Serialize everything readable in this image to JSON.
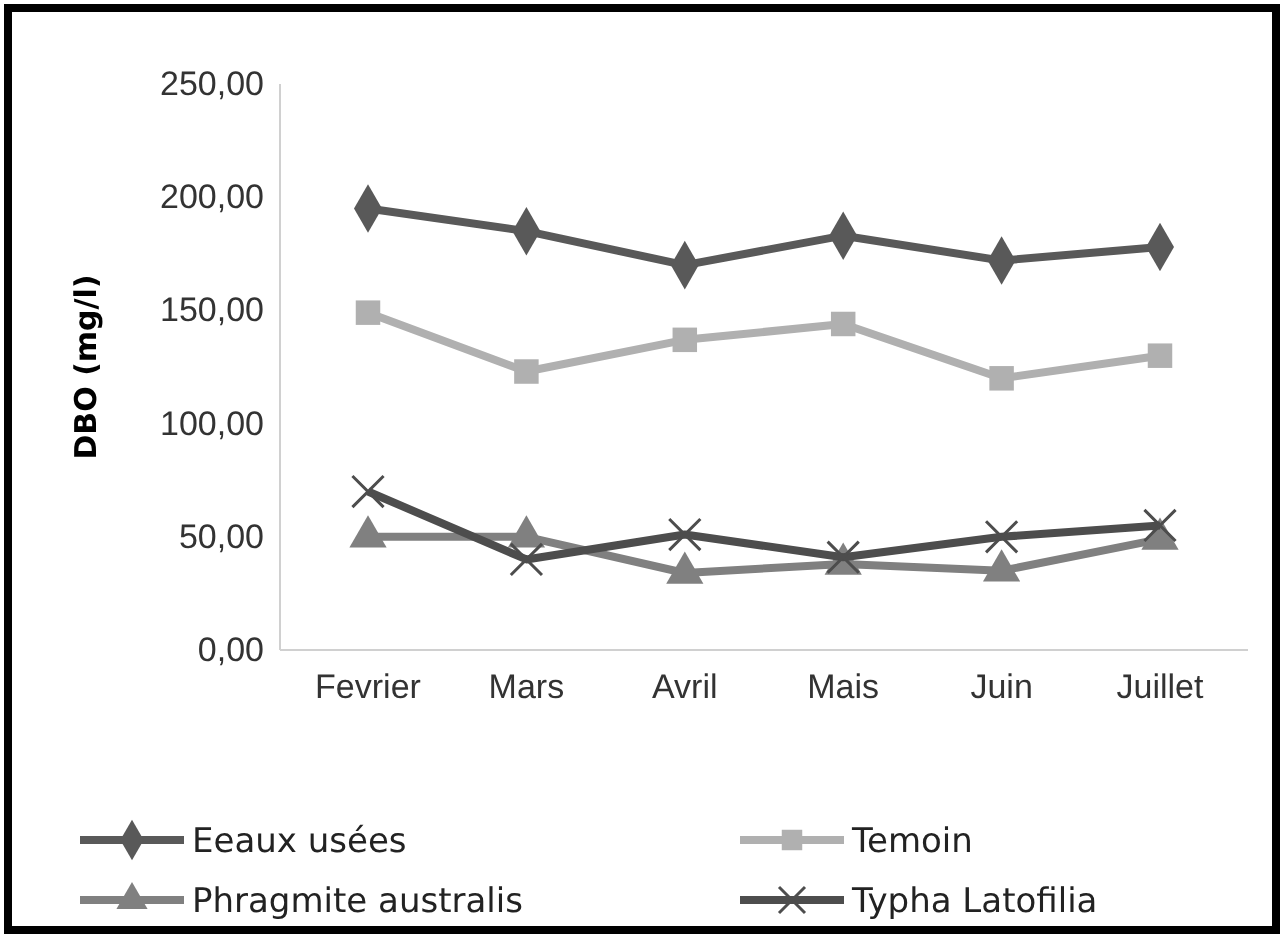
{
  "chart_data": {
    "type": "line",
    "ylabel": "DBO (mg/l)",
    "categories": [
      "Fevrier",
      "Mars",
      "Avril",
      "Mais",
      "Juin",
      "Juillet"
    ],
    "ylim": [
      0,
      250
    ],
    "yticks": [
      {
        "value": 0,
        "label": "0,00"
      },
      {
        "value": 50,
        "label": "50,00"
      },
      {
        "value": 100,
        "label": "100,00"
      },
      {
        "value": 150,
        "label": "150,00"
      },
      {
        "value": 200,
        "label": "200,00"
      },
      {
        "value": 250,
        "label": "250,00"
      }
    ],
    "grid": false,
    "legend": "bottom",
    "series": [
      {
        "name": "Eeaux usées",
        "color": "#595959",
        "marker": "diamond",
        "values": [
          195,
          185,
          170,
          183,
          172,
          178
        ]
      },
      {
        "name": "Temoin",
        "color": "#b0b0b0",
        "marker": "square",
        "values": [
          149,
          123,
          137,
          144,
          120,
          130
        ]
      },
      {
        "name": "Phragmite australis",
        "color": "#808080",
        "marker": "triangle",
        "values": [
          50,
          50,
          34,
          38,
          35,
          49
        ]
      },
      {
        "name": "Typha Latofilia",
        "color": "#4d4d4d",
        "marker": "cross",
        "values": [
          70,
          40,
          51,
          41,
          50,
          55
        ]
      }
    ]
  }
}
